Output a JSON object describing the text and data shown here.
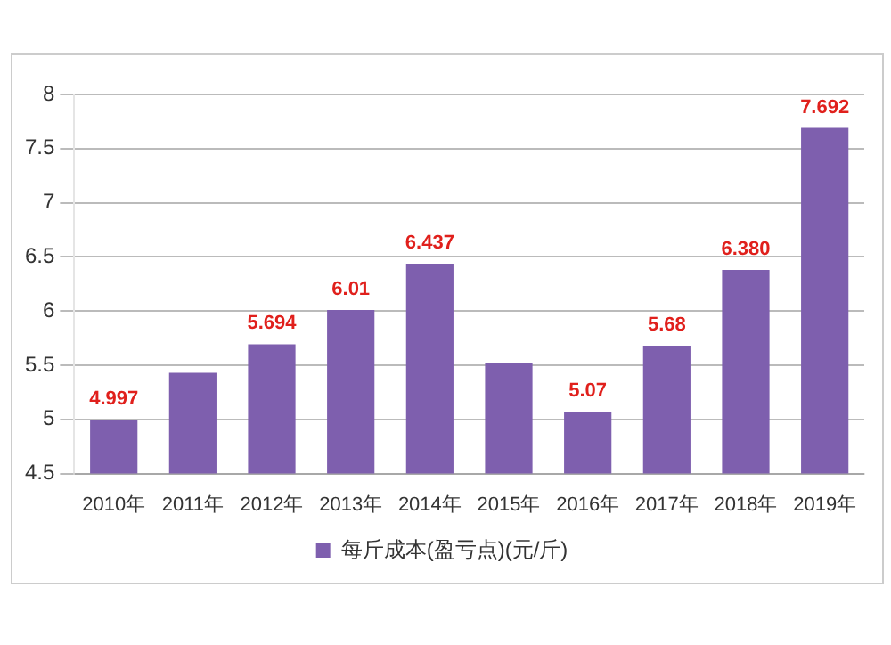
{
  "chart_data": {
    "type": "bar",
    "categories": [
      "2010年",
      "2011年",
      "2012年",
      "2013年",
      "2014年",
      "2015年",
      "2016年",
      "2017年",
      "2018年",
      "2019年"
    ],
    "series": [
      {
        "name": "每斤成本(盈亏点)(元/斤)",
        "color": "#7e5fae",
        "values": [
          4.997,
          5.43,
          5.694,
          6.01,
          6.437,
          5.52,
          5.07,
          5.68,
          6.38,
          7.692
        ],
        "value_labels": [
          "4.997",
          null,
          "5.694",
          "6.01",
          "6.437",
          null,
          "5.07",
          "5.68",
          "6.380",
          "7.692"
        ]
      }
    ],
    "ylim": [
      4.5,
      8
    ],
    "yticks": [
      4.5,
      5,
      5.5,
      6,
      6.5,
      7,
      7.5,
      8
    ],
    "grid": "y",
    "legend": "bottom"
  }
}
